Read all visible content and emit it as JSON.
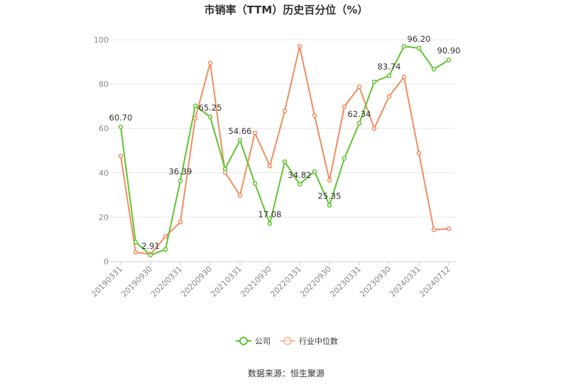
{
  "chart_data": {
    "type": "line",
    "title": "市销率（TTM）历史百分位（%）",
    "xlabel": "",
    "ylabel": "",
    "ylim": [
      0,
      100
    ],
    "yticks": [
      0,
      20,
      40,
      60,
      80,
      100
    ],
    "grid": true,
    "legend_position": "bottom",
    "x": [
      "20190331",
      "20190630",
      "20190930",
      "20191231",
      "20200331",
      "20200630",
      "20200930",
      "20201231",
      "20210331",
      "20210630",
      "20210930",
      "20211231",
      "20220331",
      "20220630",
      "20220930",
      "20221231",
      "20230331",
      "20230630",
      "20230930",
      "20231231",
      "20240331",
      "20240630",
      "20240712"
    ],
    "x_tick_labels": [
      "20190331",
      "20190930",
      "20200331",
      "20200930",
      "20210331",
      "20210930",
      "20220331",
      "20220930",
      "20230331",
      "20230930",
      "20240331",
      "20240712"
    ],
    "series": [
      {
        "name": "公司",
        "color": "#5ec42f",
        "values": [
          60.7,
          8.8,
          2.91,
          5.5,
          36.39,
          70.2,
          65.25,
          41.8,
          54.66,
          35.2,
          17.08,
          45.0,
          34.82,
          40.6,
          25.35,
          46.5,
          62.34,
          81.0,
          83.74,
          97.0,
          96.2,
          86.7,
          90.9
        ],
        "labels": {
          "0": "60.70",
          "2": "2.91",
          "4": "36.39",
          "6": "65.25",
          "8": "54.66",
          "10": "17.08",
          "12": "34.82",
          "14": "25.35",
          "16": "62.34",
          "18": "83.74",
          "20": "96.20",
          "22": "90.90"
        }
      },
      {
        "name": "行业中位数",
        "color": "#f28c5e",
        "values": [
          47.5,
          4.2,
          3.3,
          11.3,
          17.8,
          64.6,
          89.5,
          40.2,
          29.8,
          58.0,
          43.0,
          67.8,
          97.0,
          65.8,
          36.6,
          69.8,
          78.8,
          60.0,
          74.4,
          83.2,
          48.8,
          14.3,
          14.8
        ]
      }
    ]
  },
  "source_text": "数据来源：恒生聚源"
}
